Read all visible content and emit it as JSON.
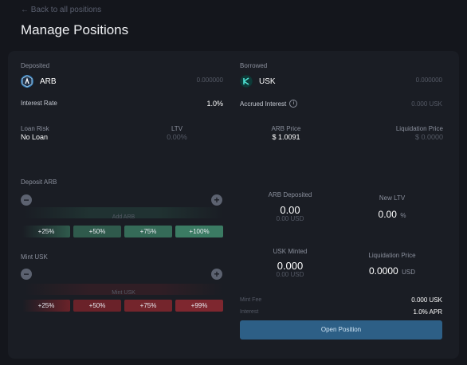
{
  "nav": {
    "back_label": "← Back to all positions"
  },
  "page": {
    "title": "Manage Positions"
  },
  "deposited": {
    "label": "Deposited",
    "token": "ARB",
    "amount": "0.000000",
    "interest_rate_label": "Interest Rate",
    "interest_rate_value": "1.0%"
  },
  "borrowed": {
    "label": "Borrowed",
    "token": "USK",
    "amount": "0.000000",
    "accrued_label": "Accrued Interest",
    "accrued_value": "0.000 USK"
  },
  "summary": {
    "loan_risk_label": "Loan Risk",
    "loan_risk_value": "No Loan",
    "ltv_label": "LTV",
    "ltv_value": "0.00%",
    "arb_price_label": "ARB Price",
    "arb_price_value": "$ 1.0091",
    "liq_price_label": "Liquidation Price",
    "liq_price_value": "$ 0.0000"
  },
  "deposit": {
    "label": "Deposit ARB",
    "add_label": "Add ARB",
    "buttons": [
      "+25%",
      "+50%",
      "+75%",
      "+100%"
    ]
  },
  "mint": {
    "label": "Mint USK",
    "mint_label": "Mint USK",
    "buttons": [
      "+25%",
      "+50%",
      "+75%",
      "+99%"
    ]
  },
  "stats": {
    "arb_deposited_label": "ARB Deposited",
    "arb_deposited_value": "0.00",
    "arb_deposited_usd": "0.00 USD",
    "new_ltv_label": "New LTV",
    "new_ltv_value": "0.00",
    "new_ltv_unit": "%",
    "usk_minted_label": "USK Minted",
    "usk_minted_value": "0.000",
    "usk_minted_usd": "0.00 USD",
    "liq_price_label": "Liquidation Price",
    "liq_price_value": "0.0000",
    "liq_price_unit": "USD"
  },
  "fees": {
    "mint_fee_label": "Mint Fee",
    "mint_fee_value": "0.000 USK",
    "interest_label": "Interest",
    "interest_value": "1.0% APR"
  },
  "actions": {
    "open_position": "Open Position"
  }
}
